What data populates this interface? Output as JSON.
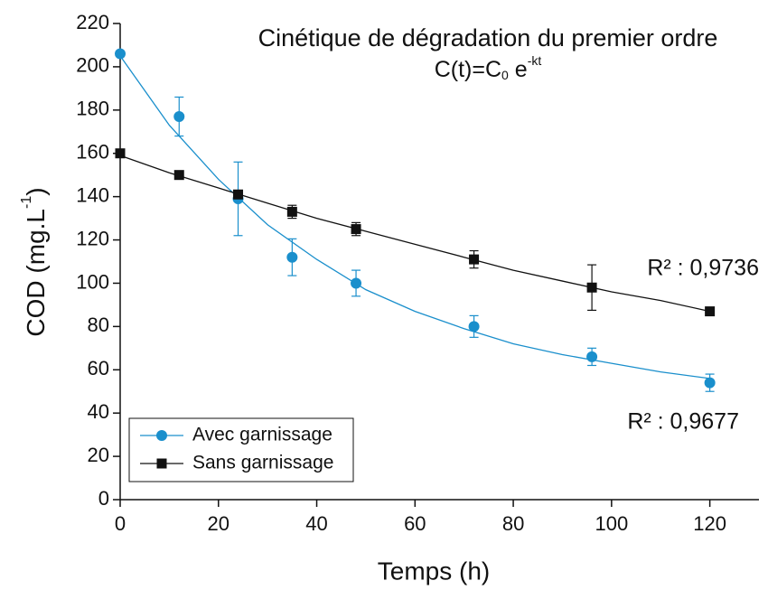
{
  "chart_data": {
    "type": "scatter",
    "title": "Cinétique de dégradation du premier ordre",
    "formula": {
      "base": "C(t)=C",
      "sub": "0",
      "mid": " e",
      "sup": "-kt"
    },
    "xlabel": "Temps (h)",
    "ylabel": {
      "base": "COD (mg.L",
      "sup": "-1",
      "end": ")"
    },
    "x": [
      0,
      12,
      24,
      35,
      48,
      72,
      96,
      120
    ],
    "series": [
      {
        "name": "Avec garnissage",
        "color": "#1a8fcc",
        "marker": "circle",
        "values": [
          206,
          177,
          139,
          112,
          100,
          80,
          66,
          54
        ],
        "errors": [
          0,
          9,
          17,
          8.5,
          6,
          5,
          4,
          4
        ],
        "fit_x": [
          0,
          10,
          20,
          30,
          40,
          50,
          60,
          70,
          80,
          90,
          100,
          110,
          120
        ],
        "fit": [
          205,
          173,
          148,
          127,
          111,
          97,
          87,
          79,
          72,
          67,
          63,
          59,
          56
        ],
        "annotation": "R² : 0,9677"
      },
      {
        "name": "Sans garnissage",
        "color": "#111111",
        "marker": "square",
        "values": [
          160,
          150,
          141,
          133,
          125,
          111,
          98,
          87
        ],
        "errors": [
          0,
          0,
          1,
          3,
          3,
          4,
          10.5,
          0
        ],
        "fit_x": [
          0,
          10,
          20,
          30,
          40,
          50,
          60,
          70,
          80,
          90,
          100,
          110,
          120
        ],
        "fit": [
          159,
          151,
          144,
          137,
          130,
          124,
          118,
          112,
          106,
          101,
          96,
          92,
          87
        ],
        "annotation": "R² : 0,9736"
      }
    ],
    "xlim": [
      0,
      130
    ],
    "xticks": [
      0,
      20,
      40,
      60,
      80,
      100,
      120
    ],
    "ylim": [
      0,
      220
    ],
    "yticks": [
      0,
      20,
      40,
      60,
      80,
      100,
      120,
      140,
      160,
      180,
      200,
      220
    ],
    "legend": "lower left"
  }
}
